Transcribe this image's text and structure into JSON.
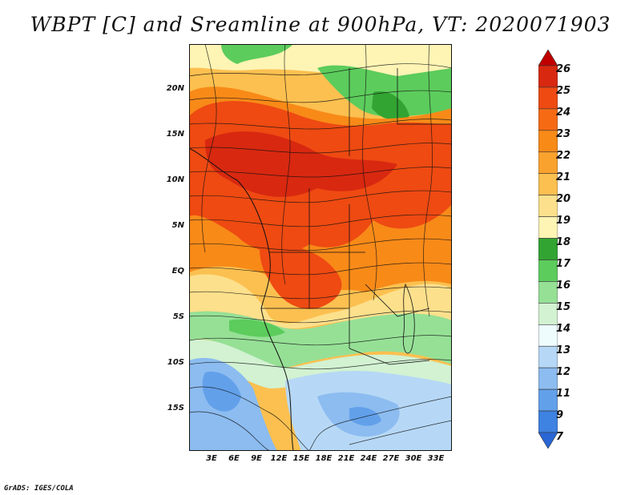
{
  "title": "WBPT [C] and Sreamline at 900hPa, VT: 2020071903",
  "footer": "GrADS: IGES/COLA",
  "map": {
    "variable": "Wet-bulb potential temperature (WBPT)",
    "unit": "C",
    "level": "900hPa",
    "valid_time": "2020071903",
    "overlay": "streamlines",
    "lat_labels": [
      "20N",
      "15N",
      "10N",
      "5N",
      "EQ",
      "5S",
      "10S",
      "15S"
    ],
    "lon_labels": [
      "3E",
      "6E",
      "9E",
      "12E",
      "15E",
      "18E",
      "21E",
      "24E",
      "27E",
      "30E",
      "33E"
    ]
  },
  "colorbar": {
    "labels": [
      "26",
      "25",
      "24",
      "23",
      "22",
      "21",
      "20",
      "19",
      "18",
      "17",
      "16",
      "15",
      "14",
      "13",
      "12",
      "11",
      "9",
      "7"
    ],
    "colors": [
      "#c00000",
      "#d82810",
      "#ee4a12",
      "#f66a14",
      "#f88a18",
      "#faa22e",
      "#fcc050",
      "#fde08c",
      "#fef4b4",
      "#32a432",
      "#5ccc5c",
      "#96e096",
      "#d2f2d2",
      "#eefcfe",
      "#b6d8f6",
      "#8cbcf0",
      "#62a0ea",
      "#3e82e2",
      "#2a66d4"
    ]
  }
}
